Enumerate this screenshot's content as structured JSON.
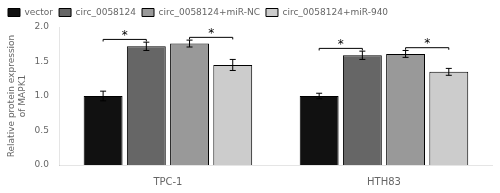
{
  "chart_data": {
    "type": "bar",
    "categories": [
      "TPC-1",
      "HTH83"
    ],
    "series": [
      {
        "name": "vector",
        "color": "#111111",
        "values": [
          1.0,
          1.0
        ],
        "errors": [
          0.07,
          0.04
        ]
      },
      {
        "name": "circ_0058124",
        "color": "#666666",
        "values": [
          1.72,
          1.59
        ],
        "errors": [
          0.06,
          0.06
        ]
      },
      {
        "name": "circ_0058124+miR-NC",
        "color": "#999999",
        "values": [
          1.76,
          1.61
        ],
        "errors": [
          0.05,
          0.05
        ]
      },
      {
        "name": "circ_0058124+miR-940",
        "color": "#cccccc",
        "values": [
          1.45,
          1.35
        ],
        "errors": [
          0.08,
          0.05
        ]
      }
    ],
    "ylabel": "Relative protein expression\nof MAPK1",
    "ylim": [
      0.0,
      2.0
    ],
    "yticks": [
      {
        "value": 0.0,
        "label": "0.0"
      },
      0.5,
      {
        "value": 1.0,
        "label": "1.0"
      },
      1.5,
      {
        "value": 2.0,
        "label": "2.0"
      }
    ],
    "grid": false,
    "legend": "upper left",
    "annotations": [
      {
        "text": "*",
        "category": "TPC-1",
        "between": [
          "vector",
          "circ_0058124"
        ]
      },
      {
        "text": "*",
        "category": "TPC-1",
        "between": [
          "circ_0058124+miR-NC",
          "circ_0058124+miR-940"
        ]
      },
      {
        "text": "*",
        "category": "HTH83",
        "between": [
          "vector",
          "circ_0058124"
        ]
      },
      {
        "text": "*",
        "category": "HTH83",
        "between": [
          "circ_0058124+miR-NC",
          "circ_0058124+miR-940"
        ]
      }
    ]
  }
}
